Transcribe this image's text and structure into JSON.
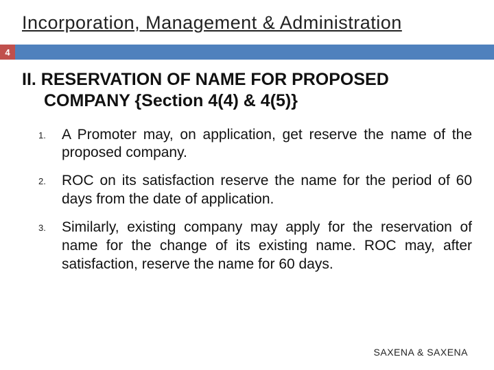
{
  "title": "Incorporation, Management & Administration",
  "page_number": "4",
  "colors": {
    "badge_bg": "#c0504d",
    "bar_bg": "#4f81bd",
    "text": "#111111",
    "background": "#ffffff"
  },
  "typography": {
    "title_fontsize": 27,
    "heading_fontsize": 25,
    "body_fontsize": 21,
    "list_number_fontsize": 13,
    "footer_fontsize": 14
  },
  "section": {
    "heading_line1": "II. RESERVATION OF NAME FOR PROPOSED",
    "heading_line2": "COMPANY {Section 4(4) & 4(5)}"
  },
  "items": [
    {
      "num": "1.",
      "text": "A Promoter may, on application, get reserve the name of the proposed company."
    },
    {
      "num": "2.",
      "text": "ROC on its satisfaction reserve the name for the period of 60 days from the date of application."
    },
    {
      "num": "3.",
      "text": "Similarly, existing company may apply for the reservation of name for the change of its existing name.  ROC may, after satisfaction, reserve the name for 60 days."
    }
  ],
  "footer": "SAXENA & SAXENA"
}
